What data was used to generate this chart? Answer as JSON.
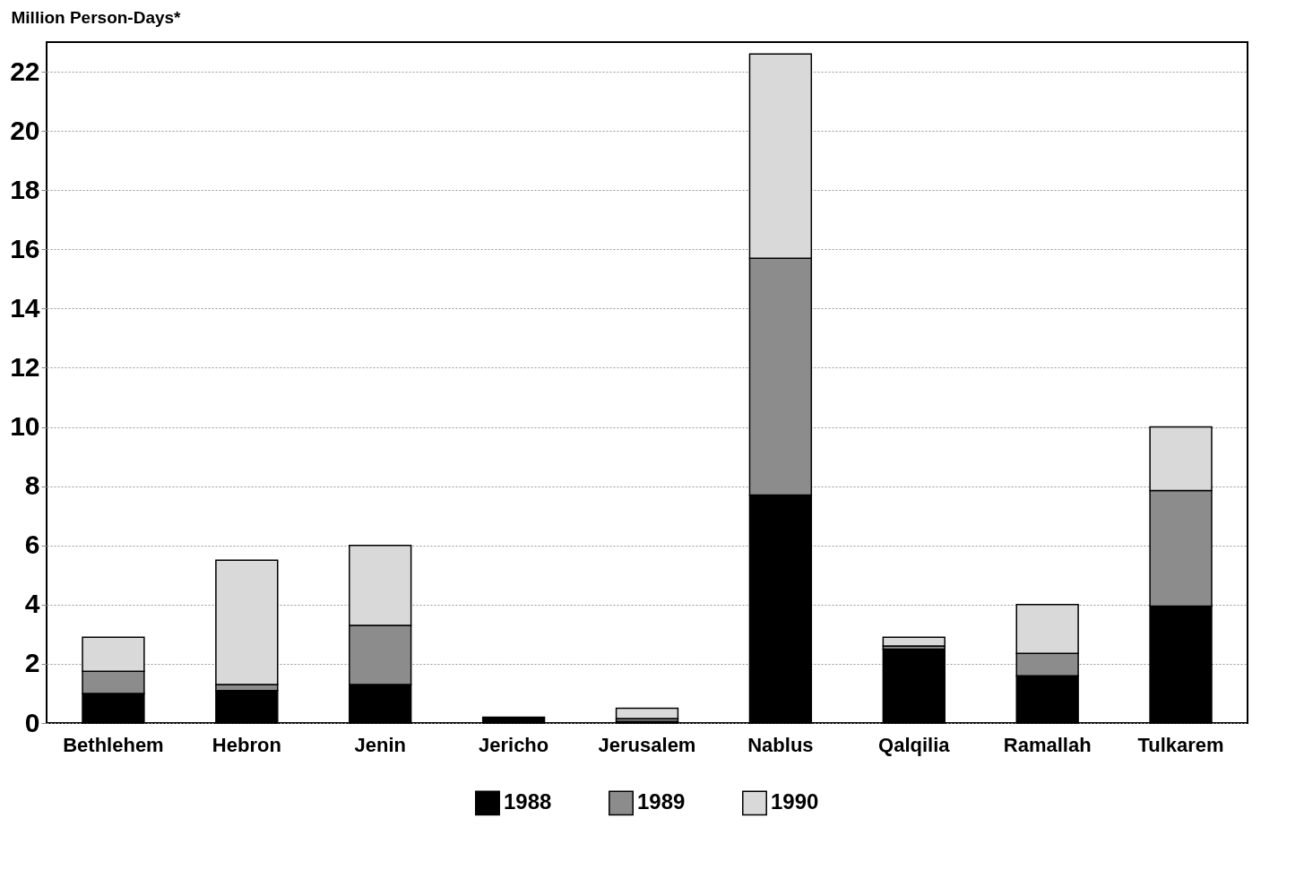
{
  "chart_data": {
    "type": "bar",
    "stacked": true,
    "ylabel": "Million Person-Days*",
    "categories": [
      "Bethlehem",
      "Hebron",
      "Jenin",
      "Jericho",
      "Jerusalem",
      "Nablus",
      "Qalqilia",
      "Ramallah",
      "Tulkarem"
    ],
    "series": [
      {
        "name": "1988",
        "color": "#000000",
        "values": [
          1.0,
          1.1,
          1.3,
          0.2,
          0.05,
          7.7,
          2.5,
          1.6,
          3.95
        ]
      },
      {
        "name": "1989",
        "color": "#8c8c8c",
        "values": [
          0.75,
          0.2,
          2.0,
          null,
          0.1,
          8.0,
          0.1,
          0.75,
          3.9
        ]
      },
      {
        "name": "1990",
        "color": "#d9d9d9",
        "values": [
          1.15,
          4.2,
          2.7,
          null,
          0.35,
          6.9,
          0.3,
          1.65,
          2.15
        ]
      }
    ],
    "ylim": [
      0,
      23
    ],
    "yticks": [
      0,
      2,
      4,
      6,
      8,
      10,
      12,
      14,
      16,
      18,
      20,
      22
    ],
    "grid": "y",
    "legend": "bottom"
  }
}
